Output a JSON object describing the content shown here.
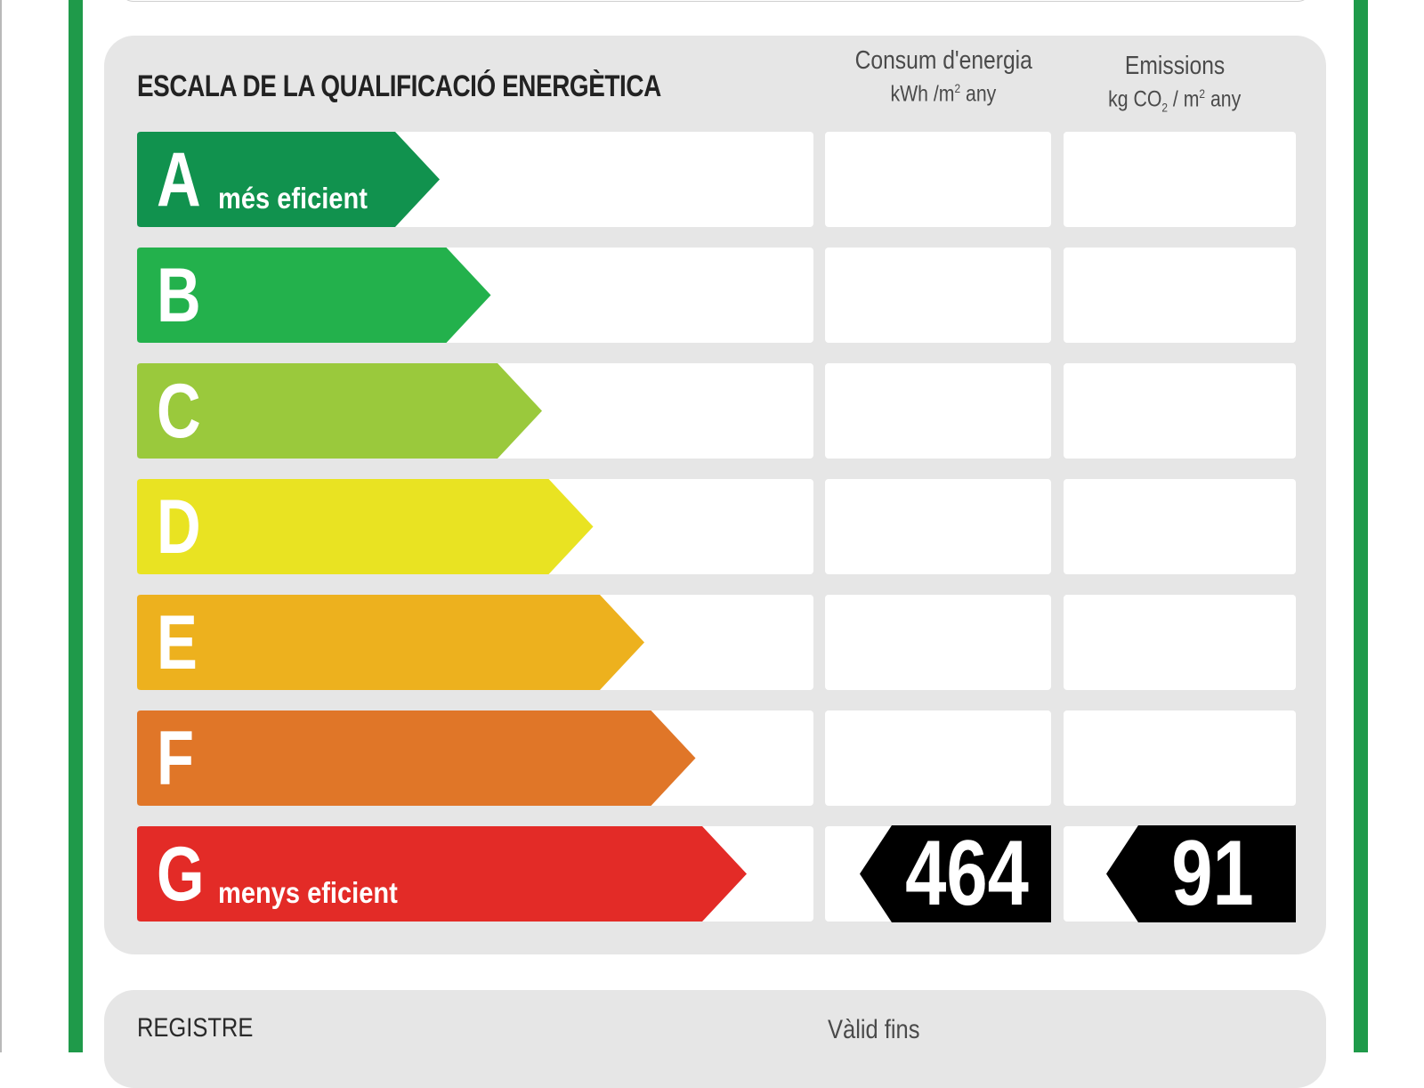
{
  "scale": {
    "title": "ESCALA DE LA QUALIFICACIÓ ENERGÈTICA",
    "energy_header": {
      "label": "Consum d'energia",
      "unit_prefix": "kWh /m",
      "unit_sup": "2",
      "unit_suffix": " any"
    },
    "emissions_header": {
      "label": "Emissions",
      "unit_prefix": "kg CO",
      "unit_sub": "2",
      "unit_mid": " / m",
      "unit_sup": "2",
      "unit_suffix": " any"
    },
    "ratings": [
      {
        "letter": "A",
        "caption": "més eficient",
        "color": "#11924e"
      },
      {
        "letter": "B",
        "caption": "",
        "color": "#23b14c"
      },
      {
        "letter": "C",
        "caption": "",
        "color": "#9ac93c"
      },
      {
        "letter": "D",
        "caption": "",
        "color": "#e9e322"
      },
      {
        "letter": "E",
        "caption": "",
        "color": "#edb11e"
      },
      {
        "letter": "F",
        "caption": "",
        "color": "#e07628"
      },
      {
        "letter": "G",
        "caption": "menys eficient",
        "color": "#e32b27"
      }
    ],
    "current_rating": "G",
    "energy_value": "464",
    "emissions_value": "91",
    "value_badge_color": "#000000"
  },
  "footer": {
    "registre_label": "REGISTRE",
    "valid_label": "Vàlid fins"
  },
  "colors": {
    "border_green": "#1f9a4a",
    "panel_gray": "#e6e6e6"
  }
}
